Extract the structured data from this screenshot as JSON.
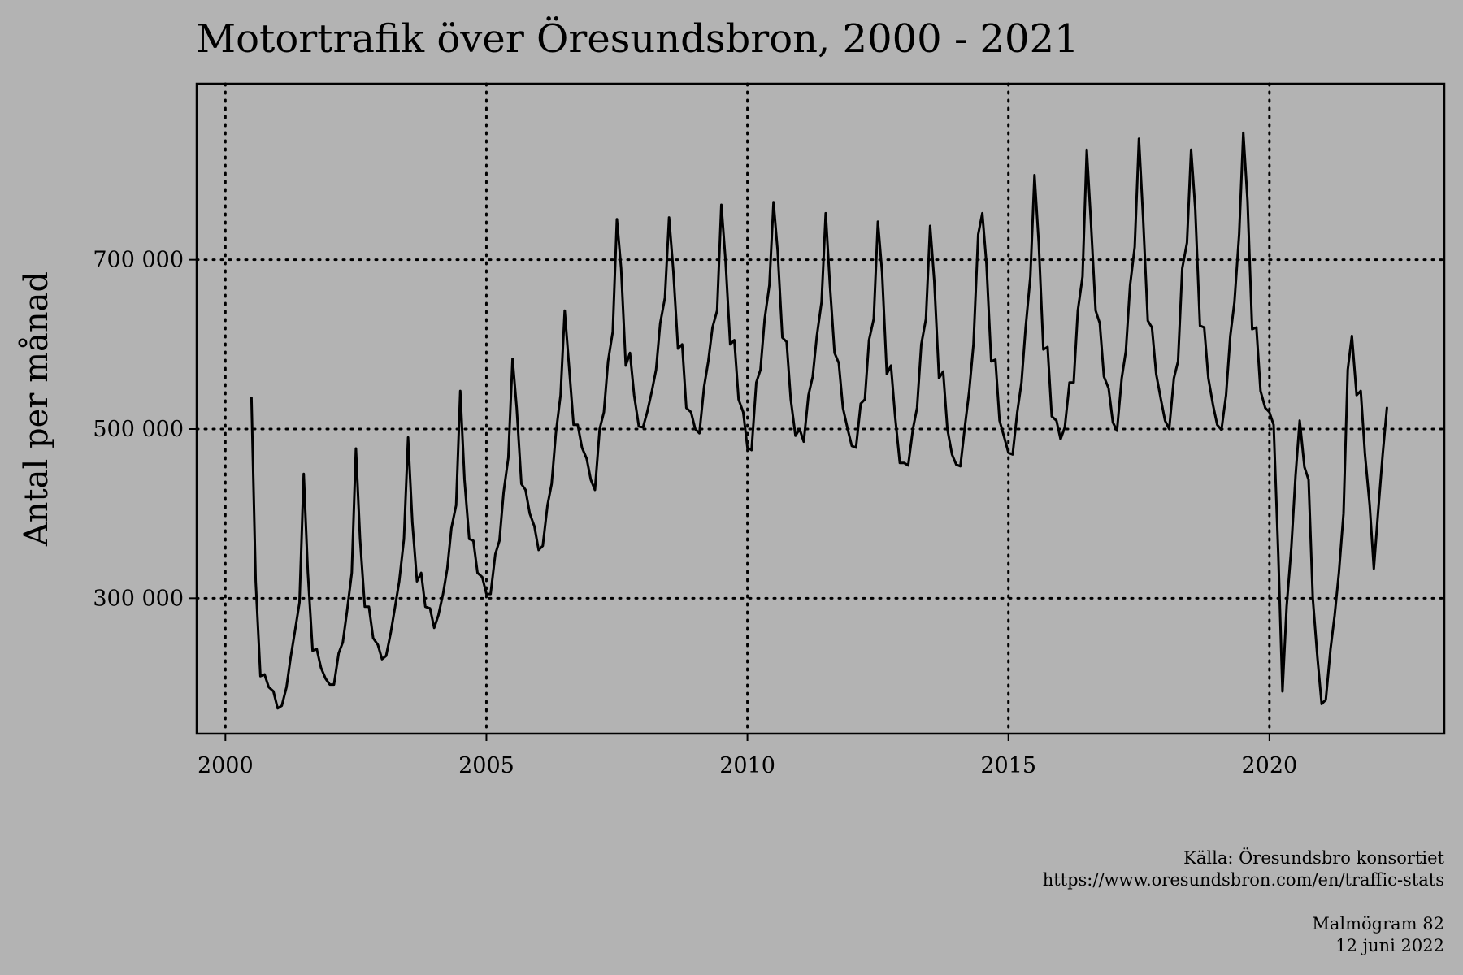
{
  "chart_data": {
    "type": "line",
    "title": "Motortrafik över Öresundsbron, 2000 - 2021",
    "xlabel": "",
    "ylabel": "Antal per månad",
    "xlim": [
      1999.45,
      2023.35
    ],
    "ylim": [
      140000,
      908000
    ],
    "x_ticks": [
      2000,
      2005,
      2010,
      2015,
      2020
    ],
    "x_tick_labels": [
      "2000",
      "2005",
      "2010",
      "2015",
      "2020"
    ],
    "y_ticks": [
      300000,
      500000,
      700000
    ],
    "y_tick_labels": [
      "300 000",
      "500 000",
      "700 000"
    ],
    "grid": "dotted, at tick positions",
    "legend": "none",
    "series": [
      {
        "x": [
          2000.5,
          2000.58,
          2000.67,
          2000.75,
          2000.83,
          2000.92,
          2001.0,
          2001.08,
          2001.17,
          2001.25,
          2001.33,
          2001.42,
          2001.5,
          2001.58,
          2001.67,
          2001.75,
          2001.83,
          2001.92,
          2002.0,
          2002.08,
          2002.17,
          2002.25,
          2002.33,
          2002.42,
          2002.5,
          2002.58,
          2002.67,
          2002.75,
          2002.83,
          2002.92,
          2003.0,
          2003.08,
          2003.17,
          2003.25,
          2003.33,
          2003.42,
          2003.5,
          2003.58,
          2003.67,
          2003.75,
          2003.83,
          2003.92,
          2004.0,
          2004.08,
          2004.17,
          2004.25,
          2004.33,
          2004.42,
          2004.5,
          2004.58,
          2004.67,
          2004.75,
          2004.83,
          2004.92,
          2005.0,
          2005.08,
          2005.17,
          2005.25,
          2005.33,
          2005.42,
          2005.5,
          2005.58,
          2005.67,
          2005.75,
          2005.83,
          2005.92,
          2006.0,
          2006.08,
          2006.17,
          2006.25,
          2006.33,
          2006.42,
          2006.5,
          2006.58,
          2006.67,
          2006.75,
          2006.83,
          2006.92,
          2007.0,
          2007.08,
          2007.17,
          2007.25,
          2007.33,
          2007.42,
          2007.5,
          2007.58,
          2007.67,
          2007.75,
          2007.83,
          2007.92,
          2008.0,
          2008.08,
          2008.17,
          2008.25,
          2008.33,
          2008.42,
          2008.5,
          2008.58,
          2008.67,
          2008.75,
          2008.83,
          2008.92,
          2009.0,
          2009.08,
          2009.17,
          2009.25,
          2009.33,
          2009.42,
          2009.5,
          2009.58,
          2009.67,
          2009.75,
          2009.83,
          2009.92,
          2010.0,
          2010.08,
          2010.17,
          2010.25,
          2010.33,
          2010.42,
          2010.5,
          2010.58,
          2010.67,
          2010.75,
          2010.83,
          2010.92,
          2011.0,
          2011.08,
          2011.17,
          2011.25,
          2011.33,
          2011.42,
          2011.5,
          2011.58,
          2011.67,
          2011.75,
          2011.83,
          2011.92,
          2012.0,
          2012.08,
          2012.17,
          2012.25,
          2012.33,
          2012.42,
          2012.5,
          2012.58,
          2012.67,
          2012.75,
          2012.83,
          2012.92,
          2013.0,
          2013.08,
          2013.17,
          2013.25,
          2013.33,
          2013.42,
          2013.5,
          2013.58,
          2013.67,
          2013.75,
          2013.83,
          2013.92,
          2014.0,
          2014.08,
          2014.17,
          2014.25,
          2014.33,
          2014.42,
          2014.5,
          2014.58,
          2014.67,
          2014.75,
          2014.83,
          2014.92,
          2015.0,
          2015.08,
          2015.17,
          2015.25,
          2015.33,
          2015.42,
          2015.5,
          2015.58,
          2015.67,
          2015.75,
          2015.83,
          2015.92,
          2016.0,
          2016.08,
          2016.17,
          2016.25,
          2016.33,
          2016.42,
          2016.5,
          2016.58,
          2016.67,
          2016.75,
          2016.83,
          2016.92,
          2017.0,
          2017.08,
          2017.17,
          2017.25,
          2017.33,
          2017.42,
          2017.5,
          2017.58,
          2017.67,
          2017.75,
          2017.83,
          2017.92,
          2018.0,
          2018.08,
          2018.17,
          2018.25,
          2018.33,
          2018.42,
          2018.5,
          2018.58,
          2018.67,
          2018.75,
          2018.83,
          2018.92,
          2019.0,
          2019.08,
          2019.17,
          2019.25,
          2019.33,
          2019.42,
          2019.5,
          2019.58,
          2019.67,
          2019.75,
          2019.83,
          2019.92,
          2020.0,
          2020.08,
          2020.17,
          2020.25,
          2020.33,
          2020.42,
          2020.5,
          2020.58,
          2020.67,
          2020.75,
          2020.83,
          2020.92,
          2021.0,
          2021.08,
          2021.17,
          2021.25,
          2021.33,
          2021.42,
          2021.5,
          2021.58,
          2021.67,
          2021.75,
          2021.83,
          2021.92,
          2022.0,
          2022.08,
          2022.17,
          2022.25
        ],
        "y": [
          537000,
          320000,
          208000,
          210000,
          195000,
          190000,
          170000,
          173000,
          195000,
          230000,
          260000,
          295000,
          447000,
          330000,
          238000,
          240000,
          218000,
          205000,
          198000,
          198000,
          235000,
          248000,
          285000,
          330000,
          477000,
          370000,
          290000,
          290000,
          253000,
          245000,
          228000,
          232000,
          260000,
          290000,
          320000,
          370000,
          490000,
          390000,
          320000,
          330000,
          290000,
          288000,
          265000,
          280000,
          305000,
          335000,
          383000,
          410000,
          545000,
          440000,
          370000,
          368000,
          330000,
          325000,
          305000,
          305000,
          352000,
          368000,
          425000,
          466000,
          583000,
          525000,
          435000,
          428000,
          400000,
          385000,
          357000,
          362000,
          410000,
          435000,
          495000,
          540000,
          640000,
          577000,
          505000,
          505000,
          478000,
          465000,
          440000,
          428000,
          500000,
          520000,
          580000,
          615000,
          748000,
          690000,
          575000,
          590000,
          540000,
          503000,
          502000,
          520000,
          545000,
          570000,
          625000,
          655000,
          750000,
          687000,
          595000,
          600000,
          525000,
          520000,
          500000,
          495000,
          550000,
          580000,
          620000,
          640000,
          765000,
          700000,
          600000,
          605000,
          535000,
          520000,
          478000,
          475000,
          555000,
          570000,
          630000,
          670000,
          768000,
          710000,
          608000,
          603000,
          535000,
          492000,
          500000,
          485000,
          540000,
          562000,
          610000,
          650000,
          755000,
          670000,
          590000,
          578000,
          525000,
          500000,
          480000,
          478000,
          530000,
          535000,
          605000,
          630000,
          745000,
          685000,
          565000,
          575000,
          515000,
          460000,
          460000,
          457000,
          500000,
          525000,
          600000,
          630000,
          740000,
          675000,
          560000,
          568000,
          500000,
          470000,
          458000,
          456000,
          505000,
          545000,
          600000,
          730000,
          755000,
          695000,
          580000,
          582000,
          510000,
          490000,
          472000,
          470000,
          520000,
          555000,
          620000,
          680000,
          800000,
          720000,
          594000,
          597000,
          515000,
          510000,
          488000,
          502000,
          555000,
          555000,
          640000,
          680000,
          830000,
          745000,
          640000,
          625000,
          562000,
          548000,
          508000,
          498000,
          560000,
          592000,
          670000,
          715000,
          843000,
          750000,
          628000,
          620000,
          565000,
          535000,
          510000,
          500000,
          560000,
          580000,
          690000,
          720000,
          830000,
          760000,
          622000,
          620000,
          560000,
          528000,
          505000,
          499000,
          540000,
          610000,
          650000,
          730000,
          850000,
          770000,
          618000,
          620000,
          545000,
          525000,
          520000,
          505000,
          350000,
          190000,
          290000,
          360000,
          445000,
          510000,
          455000,
          440000,
          300000,
          230000,
          175000,
          180000,
          240000,
          280000,
          330000,
          400000,
          570000,
          610000,
          540000,
          545000,
          470000,
          410000,
          335000,
          400000,
          470000,
          525000
        ]
      }
    ]
  },
  "caption": {
    "source_line1": "Källa: Öresundsbro konsortiet",
    "source_line2": "https://www.oresundsbron.com/en/traffic-stats",
    "footer_line1": "Malmögram 82",
    "footer_line2": "12 juni 2022"
  }
}
